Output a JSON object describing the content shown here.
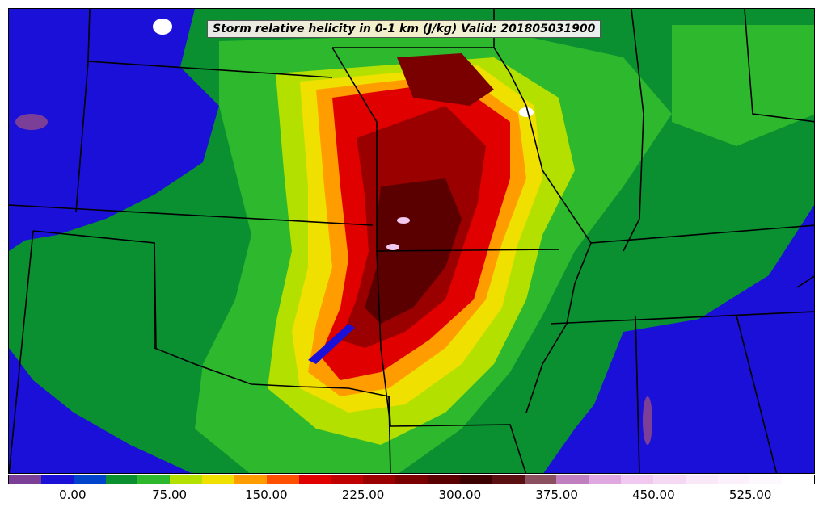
{
  "title": "Storm relative helicity in 0-1 km (J/kg) Valid: 201805031900",
  "colorbar": {
    "min": -50,
    "max": 575,
    "step": 25,
    "colors": [
      "#7b3f98",
      "#1a10d8",
      "#0044cc",
      "#0a9030",
      "#2db82d",
      "#b4e000",
      "#f0e000",
      "#ff9c00",
      "#ff5000",
      "#e00000",
      "#c00000",
      "#9a0000",
      "#7a0000",
      "#5a0000",
      "#3c0000",
      "#5a1010",
      "#8a5060",
      "#c080c0",
      "#e0a8e0",
      "#f0c8f0",
      "#f4d8f4",
      "#f8e8f8",
      "#fbf0fb",
      "#fdf8fd",
      "#ffffff"
    ],
    "tick_values": [
      0,
      75,
      150,
      225,
      300,
      375,
      450,
      525
    ],
    "tick_labels": [
      "0.00",
      "75.00",
      "150.00",
      "225.00",
      "300.00",
      "375.00",
      "450.00",
      "525.00"
    ]
  },
  "map": {
    "region": "central United States",
    "legend_colors": {
      "low": "#1a10d8",
      "green": "#0a9030",
      "light_green": "#2db82d",
      "yellow": "#f0e000",
      "orange": "#ff9c00",
      "red": "#e00000",
      "dark_red": "#7a0000",
      "pink": "#e0a8e0",
      "purple": "#7b3f98"
    }
  }
}
